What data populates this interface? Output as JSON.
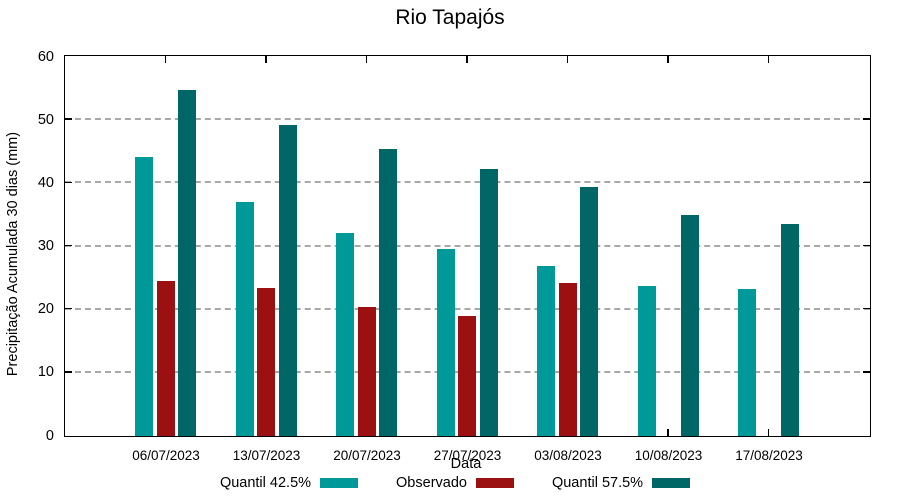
{
  "chart_data": {
    "type": "bar",
    "title": "Rio Tapajós",
    "xlabel": "Data",
    "ylabel": "Precipitação Acumulada 30 dias (mm)",
    "ylim": [
      0,
      60
    ],
    "yticks": [
      0,
      10,
      20,
      30,
      40,
      50,
      60
    ],
    "grid": "horizontal-dashed",
    "legend_position": "bottom",
    "categories": [
      "06/07/2023",
      "13/07/2023",
      "20/07/2023",
      "27/07/2023",
      "03/08/2023",
      "10/08/2023",
      "17/08/2023"
    ],
    "series": [
      {
        "name": "Quantil 42.5%",
        "color": "#009999",
        "values": [
          44.2,
          37.0,
          32.1,
          29.6,
          26.9,
          23.8,
          23.3
        ]
      },
      {
        "name": "Observado",
        "color": "#9b1111",
        "values": [
          24.5,
          23.5,
          20.5,
          19.0,
          24.2,
          null,
          null
        ]
      },
      {
        "name": "Quantil 57.5%",
        "color": "#006666",
        "values": [
          54.8,
          49.2,
          45.5,
          42.3,
          39.5,
          35.0,
          33.6
        ]
      }
    ],
    "colors": {
      "axis": "#000000",
      "gridline": "#a8a8a8",
      "text": "#000000"
    }
  }
}
